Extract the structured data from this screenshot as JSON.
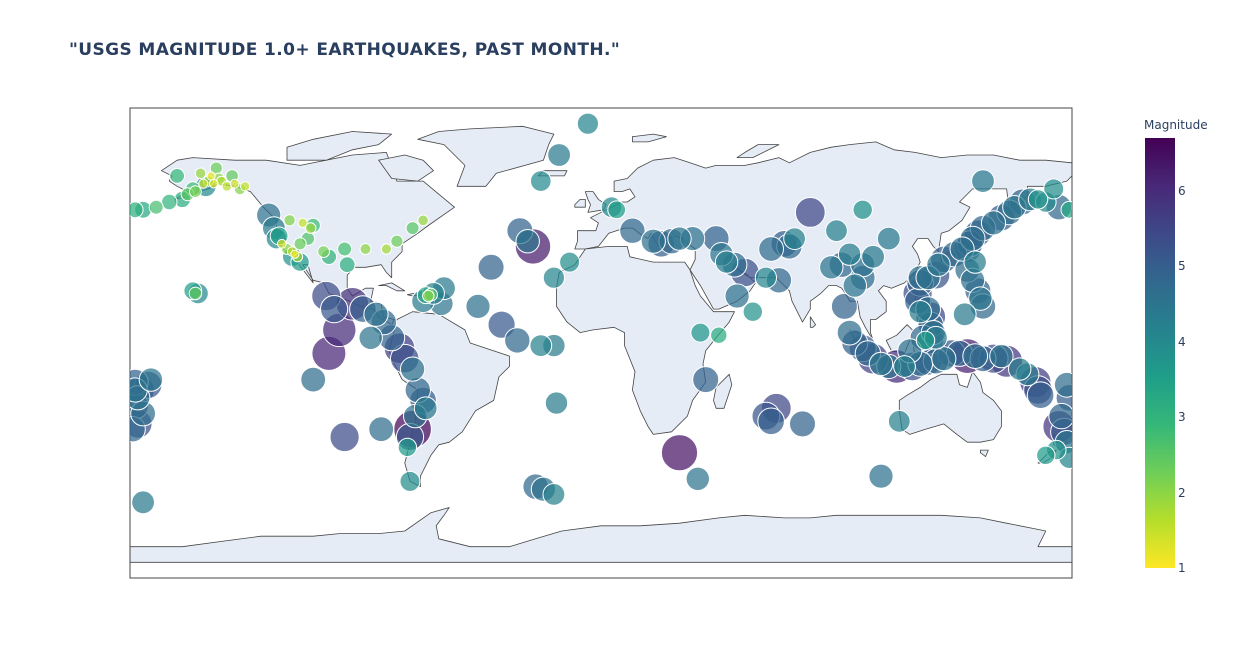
{
  "title": "\"USGS MAGNITUDE 1.0+ EARTHQUAKES, PAST MONTH.\"",
  "colorbar": {
    "title": "Magnitude",
    "ticks": [
      "1",
      "2",
      "3",
      "4",
      "5",
      "6"
    ],
    "colorscale": [
      "#fde725",
      "#b5de2b",
      "#6ece58",
      "#35b779",
      "#1f9e89",
      "#26828e",
      "#31688e",
      "#3e4989",
      "#482878",
      "#440154"
    ],
    "range": [
      1,
      6.7
    ]
  },
  "colors": {
    "land": "#e5ecf6",
    "coastline": "#444444",
    "ocean": "#ffffff",
    "frame": "#444444",
    "marker_outline": "#ffffff"
  },
  "chart_data": {
    "type": "scatter",
    "projection": "equirectangular",
    "lon_range": [
      -180,
      180
    ],
    "lat_range": [
      -90,
      90
    ],
    "size_by": "magnitude",
    "color_by": "magnitude",
    "points": [
      {
        "lon": -152,
        "lat": 61,
        "mag": 1.5
      },
      {
        "lon": -150,
        "lat": 62,
        "mag": 1.8
      },
      {
        "lon": -148,
        "lat": 61,
        "mag": 1.3
      },
      {
        "lon": -146,
        "lat": 63,
        "mag": 2.0
      },
      {
        "lon": -155,
        "lat": 58,
        "mag": 2.2
      },
      {
        "lon": -158,
        "lat": 57,
        "mag": 2.5
      },
      {
        "lon": -143,
        "lat": 60,
        "mag": 1.6
      },
      {
        "lon": -140,
        "lat": 61,
        "mag": 1.4
      },
      {
        "lon": -138,
        "lat": 59,
        "mag": 2.1
      },
      {
        "lon": -160,
        "lat": 55,
        "mag": 3.2
      },
      {
        "lon": -165,
        "lat": 54,
        "mag": 3.0
      },
      {
        "lon": -170,
        "lat": 52,
        "mag": 2.7
      },
      {
        "lon": -175,
        "lat": 51,
        "mag": 3.3
      },
      {
        "lon": -178,
        "lat": 51,
        "mag": 3.1
      },
      {
        "lon": -153,
        "lat": 65,
        "mag": 1.9
      },
      {
        "lon": -149,
        "lat": 64,
        "mag": 1.2
      },
      {
        "lon": -147,
        "lat": 67,
        "mag": 2.3
      },
      {
        "lon": -145,
        "lat": 62,
        "mag": 1.7
      },
      {
        "lon": -151,
        "lat": 60,
        "mag": 4.0
      },
      {
        "lon": -156,
        "lat": 59,
        "mag": 2.8
      },
      {
        "lon": -141,
        "lat": 64,
        "mag": 2.4
      },
      {
        "lon": -136,
        "lat": 60,
        "mag": 1.5
      },
      {
        "lon": -162,
        "lat": 64,
        "mag": 2.9
      },
      {
        "lon": -122,
        "lat": 38,
        "mag": 1.4
      },
      {
        "lon": -118,
        "lat": 35,
        "mag": 1.6
      },
      {
        "lon": -117,
        "lat": 34,
        "mag": 1.2
      },
      {
        "lon": -120,
        "lat": 36,
        "mag": 2.0
      },
      {
        "lon": -116,
        "lat": 33,
        "mag": 1.8
      },
      {
        "lon": -115,
        "lat": 38,
        "mag": 2.3
      },
      {
        "lon": -112,
        "lat": 40,
        "mag": 2.6
      },
      {
        "lon": -111,
        "lat": 44,
        "mag": 1.9
      },
      {
        "lon": -106,
        "lat": 35,
        "mag": 2.2
      },
      {
        "lon": -98,
        "lat": 36,
        "mag": 2.7
      },
      {
        "lon": -97,
        "lat": 30,
        "mag": 3.1
      },
      {
        "lon": -123,
        "lat": 41,
        "mag": 3.5
      },
      {
        "lon": -125,
        "lat": 44,
        "mag": 4.4
      },
      {
        "lon": -127,
        "lat": 49,
        "mag": 4.6
      },
      {
        "lon": -124,
        "lat": 40,
        "mag": 4.0
      },
      {
        "lon": -119,
        "lat": 47,
        "mag": 2.1
      },
      {
        "lon": -114,
        "lat": 46,
        "mag": 1.5
      },
      {
        "lon": -110,
        "lat": 45,
        "mag": 2.8
      },
      {
        "lon": -104,
        "lat": 33,
        "mag": 3.0
      },
      {
        "lon": -90,
        "lat": 36,
        "mag": 2.0
      },
      {
        "lon": -82,
        "lat": 36,
        "mag": 1.8
      },
      {
        "lon": -78,
        "lat": 39,
        "mag": 2.3
      },
      {
        "lon": -72,
        "lat": 44,
        "mag": 2.5
      },
      {
        "lon": -68,
        "lat": 47,
        "mag": 1.9
      },
      {
        "lon": -118,
        "lat": 33,
        "mag": 3.8
      },
      {
        "lon": -115,
        "lat": 31,
        "mag": 3.6
      },
      {
        "lon": -155,
        "lat": 19,
        "mag": 2.4
      },
      {
        "lon": -156,
        "lat": 20,
        "mag": 3.5
      },
      {
        "lon": -154,
        "lat": 19,
        "mag": 4.0
      },
      {
        "lon": -66,
        "lat": 18,
        "mag": 2.1
      },
      {
        "lon": -65,
        "lat": 18.5,
        "mag": 2.5
      },
      {
        "lon": -67,
        "lat": 18.3,
        "mag": 3.3
      },
      {
        "lon": -64,
        "lat": 19,
        "mag": 4.2
      },
      {
        "lon": -61,
        "lat": 15,
        "mag": 4.5
      },
      {
        "lon": -68,
        "lat": 16,
        "mag": 4.4
      },
      {
        "lon": -105,
        "lat": 18,
        "mag": 5.4
      },
      {
        "lon": -102,
        "lat": 13,
        "mag": 5.1
      },
      {
        "lon": -95,
        "lat": 15,
        "mag": 5.9
      },
      {
        "lon": -91,
        "lat": 13,
        "mag": 5.0
      },
      {
        "lon": -86,
        "lat": 11,
        "mag": 4.6
      },
      {
        "lon": -83,
        "lat": 8,
        "mag": 4.8
      },
      {
        "lon": -100,
        "lat": 5,
        "mag": 6.0
      },
      {
        "lon": -104,
        "lat": -4,
        "mag": 6.1
      },
      {
        "lon": -110,
        "lat": -14,
        "mag": 4.7
      },
      {
        "lon": -80,
        "lat": 2,
        "mag": 4.9
      },
      {
        "lon": -77,
        "lat": -2,
        "mag": 5.6
      },
      {
        "lon": -75,
        "lat": -6,
        "mag": 5.3
      },
      {
        "lon": -72,
        "lat": -10,
        "mag": 4.6
      },
      {
        "lon": -70,
        "lat": -18,
        "mag": 4.8
      },
      {
        "lon": -68,
        "lat": -22,
        "mag": 5.0
      },
      {
        "lon": -71,
        "lat": -28,
        "mag": 4.5
      },
      {
        "lon": -72,
        "lat": -33,
        "mag": 6.6
      },
      {
        "lon": -73,
        "lat": -36,
        "mag": 5.1
      },
      {
        "lon": -74,
        "lat": -40,
        "mag": 3.6
      },
      {
        "lon": -67,
        "lat": -25,
        "mag": 4.4
      },
      {
        "lon": -84,
        "lat": -33,
        "mag": 4.7
      },
      {
        "lon": -98,
        "lat": -36,
        "mag": 5.4
      },
      {
        "lon": -73,
        "lat": -53,
        "mag": 3.9
      },
      {
        "lon": -88,
        "lat": 2,
        "mag": 4.5
      },
      {
        "lon": -60,
        "lat": 21,
        "mag": 4.4
      },
      {
        "lon": -47,
        "lat": 14,
        "mag": 4.6
      },
      {
        "lon": -38,
        "lat": 7,
        "mag": 5.1
      },
      {
        "lon": -32,
        "lat": 1,
        "mag": 4.8
      },
      {
        "lon": -23,
        "lat": -1,
        "mag": 4.2
      },
      {
        "lon": -18,
        "lat": -1,
        "mag": 4.3
      },
      {
        "lon": -42,
        "lat": 29,
        "mag": 4.9
      },
      {
        "lon": -28,
        "lat": 39,
        "mag": 4.5
      },
      {
        "lon": -31,
        "lat": 43,
        "mag": 4.9
      },
      {
        "lon": -26,
        "lat": 37,
        "mag": 6.3
      },
      {
        "lon": -18,
        "lat": 25,
        "mag": 4.1
      },
      {
        "lon": -12,
        "lat": 31,
        "mag": 3.9
      },
      {
        "lon": -23,
        "lat": 62,
        "mag": 4.0
      },
      {
        "lon": -16,
        "lat": 72,
        "mag": 4.4
      },
      {
        "lon": -5,
        "lat": 84,
        "mag": 4.1
      },
      {
        "lon": -25,
        "lat": -55,
        "mag": 4.8
      },
      {
        "lon": -22,
        "lat": -56,
        "mag": 4.6
      },
      {
        "lon": -18,
        "lat": -58,
        "mag": 4.2
      },
      {
        "lon": -17,
        "lat": -23,
        "mag": 4.3
      },
      {
        "lon": 37,
        "lat": -52,
        "mag": 4.5
      },
      {
        "lon": -175,
        "lat": -61,
        "mag": 4.4
      },
      {
        "lon": 4,
        "lat": 52,
        "mag": 4.0
      },
      {
        "lon": 6,
        "lat": 51,
        "mag": 3.5
      },
      {
        "lon": 12,
        "lat": 43,
        "mag": 4.8
      },
      {
        "lon": 20,
        "lat": 39,
        "mag": 4.6
      },
      {
        "lon": 23,
        "lat": 38,
        "mag": 5.0
      },
      {
        "lon": 27,
        "lat": 39,
        "mag": 4.8
      },
      {
        "lon": 30,
        "lat": 40,
        "mag": 4.5
      },
      {
        "lon": 35,
        "lat": 40,
        "mag": 4.6
      },
      {
        "lon": 44,
        "lat": 40,
        "mag": 4.9
      },
      {
        "lon": 46,
        "lat": 34,
        "mag": 4.5
      },
      {
        "lon": 51,
        "lat": 30,
        "mag": 4.7
      },
      {
        "lon": 55,
        "lat": 27,
        "mag": 5.3
      },
      {
        "lon": 48,
        "lat": 31,
        "mag": 4.3
      },
      {
        "lon": 63,
        "lat": 25,
        "mag": 4.1
      },
      {
        "lon": 65,
        "lat": 36,
        "mag": 4.7
      },
      {
        "lon": 70,
        "lat": 38,
        "mag": 5.0
      },
      {
        "lon": 72,
        "lat": 37,
        "mag": 4.8
      },
      {
        "lon": 74,
        "lat": 40,
        "mag": 4.2
      },
      {
        "lon": 88,
        "lat": 29,
        "mag": 4.5
      },
      {
        "lon": 92,
        "lat": 30,
        "mag": 4.8
      },
      {
        "lon": 95,
        "lat": 34,
        "mag": 4.3
      },
      {
        "lon": 100,
        "lat": 30,
        "mag": 4.6
      },
      {
        "lon": 104,
        "lat": 33,
        "mag": 4.4
      },
      {
        "lon": 100,
        "lat": 25,
        "mag": 4.7
      },
      {
        "lon": 97,
        "lat": 22,
        "mag": 4.5
      },
      {
        "lon": 93,
        "lat": 14,
        "mag": 4.9
      },
      {
        "lon": 80,
        "lat": 50,
        "mag": 5.5
      },
      {
        "lon": 90,
        "lat": 43,
        "mag": 4.2
      },
      {
        "lon": 100,
        "lat": 51,
        "mag": 3.8
      },
      {
        "lon": 110,
        "lat": 40,
        "mag": 4.4
      },
      {
        "lon": 38,
        "lat": 4,
        "mag": 3.7
      },
      {
        "lon": 45,
        "lat": 3,
        "mag": 3.2
      },
      {
        "lon": 52,
        "lat": 18,
        "mag": 4.6
      },
      {
        "lon": 58,
        "lat": 12,
        "mag": 3.8
      },
      {
        "lon": 68,
        "lat": 24,
        "mag": 4.8
      },
      {
        "lon": 67,
        "lat": -25,
        "mag": 5.5
      },
      {
        "lon": 63,
        "lat": -28,
        "mag": 5.2
      },
      {
        "lon": 65,
        "lat": -30,
        "mag": 5.0
      },
      {
        "lon": 40,
        "lat": -14,
        "mag": 4.9
      },
      {
        "lon": 77,
        "lat": -31,
        "mag": 4.9
      },
      {
        "lon": 30,
        "lat": -42,
        "mag": 6.4
      },
      {
        "lon": 107,
        "lat": -51,
        "mag": 4.6
      },
      {
        "lon": 114,
        "lat": -30,
        "mag": 4.2
      },
      {
        "lon": 95,
        "lat": 4,
        "mag": 4.7
      },
      {
        "lon": 97,
        "lat": 0,
        "mag": 4.9
      },
      {
        "lon": 100,
        "lat": -2,
        "mag": 5.1
      },
      {
        "lon": 102,
        "lat": -4,
        "mag": 4.8
      },
      {
        "lon": 104,
        "lat": -6,
        "mag": 5.6
      },
      {
        "lon": 107,
        "lat": -8,
        "mag": 4.5
      },
      {
        "lon": 110,
        "lat": -9,
        "mag": 4.6
      },
      {
        "lon": 113,
        "lat": -9,
        "mag": 6.0
      },
      {
        "lon": 116,
        "lat": -9,
        "mag": 4.2
      },
      {
        "lon": 119,
        "lat": -9,
        "mag": 5.3
      },
      {
        "lon": 122,
        "lat": -8,
        "mag": 4.7
      },
      {
        "lon": 125,
        "lat": -7,
        "mag": 5.2
      },
      {
        "lon": 128,
        "lat": -7,
        "mag": 4.8
      },
      {
        "lon": 131,
        "lat": -6,
        "mag": 4.6
      },
      {
        "lon": 134,
        "lat": -4,
        "mag": 5.1
      },
      {
        "lon": 137,
        "lat": -4,
        "mag": 4.9
      },
      {
        "lon": 140,
        "lat": -5,
        "mag": 6.2
      },
      {
        "lon": 143,
        "lat": -5,
        "mag": 4.7
      },
      {
        "lon": 146,
        "lat": -6,
        "mag": 4.9
      },
      {
        "lon": 150,
        "lat": -6,
        "mag": 5.4
      },
      {
        "lon": 153,
        "lat": -5,
        "mag": 4.5
      },
      {
        "lon": 155,
        "lat": -7,
        "mag": 5.8
      },
      {
        "lon": 160,
        "lat": -10,
        "mag": 4.3
      },
      {
        "lon": 166,
        "lat": -15,
        "mag": 5.7
      },
      {
        "lon": 167,
        "lat": -18,
        "mag": 5.3
      },
      {
        "lon": 168,
        "lat": -20,
        "mag": 5.0
      },
      {
        "lon": 163,
        "lat": -12,
        "mag": 4.4
      },
      {
        "lon": 126,
        "lat": 1,
        "mag": 5.0
      },
      {
        "lon": 127,
        "lat": 4,
        "mag": 4.6
      },
      {
        "lon": 126,
        "lat": 7,
        "mag": 4.8
      },
      {
        "lon": 126,
        "lat": 10,
        "mag": 5.5
      },
      {
        "lon": 125,
        "lat": 13,
        "mag": 4.7
      },
      {
        "lon": 121,
        "lat": 16,
        "mag": 4.9
      },
      {
        "lon": 121,
        "lat": 19,
        "mag": 5.4
      },
      {
        "lon": 122,
        "lat": 23,
        "mag": 5.0
      },
      {
        "lon": 122,
        "lat": 25,
        "mag": 4.6
      },
      {
        "lon": 122,
        "lat": 12,
        "mag": 4.3
      },
      {
        "lon": 124,
        "lat": 1,
        "mag": 3.6
      },
      {
        "lon": 118,
        "lat": -3,
        "mag": 4.6
      },
      {
        "lon": 123,
        "lat": 2,
        "mag": 4.8
      },
      {
        "lon": 128,
        "lat": 2,
        "mag": 4.4
      },
      {
        "lon": 129,
        "lat": 30,
        "mag": 4.5
      },
      {
        "lon": 131,
        "lat": 32,
        "mag": 5.0
      },
      {
        "lon": 135,
        "lat": 34,
        "mag": 4.8
      },
      {
        "lon": 138,
        "lat": 36,
        "mag": 4.6
      },
      {
        "lon": 140,
        "lat": 36,
        "mag": 5.1
      },
      {
        "lon": 141,
        "lat": 38,
        "mag": 4.9
      },
      {
        "lon": 142,
        "lat": 40,
        "mag": 4.7
      },
      {
        "lon": 144,
        "lat": 42,
        "mag": 5.0
      },
      {
        "lon": 146,
        "lat": 44,
        "mag": 4.8
      },
      {
        "lon": 150,
        "lat": 46,
        "mag": 4.6
      },
      {
        "lon": 153,
        "lat": 48,
        "mag": 5.0
      },
      {
        "lon": 156,
        "lat": 50,
        "mag": 4.7
      },
      {
        "lon": 158,
        "lat": 52,
        "mag": 4.5
      },
      {
        "lon": 161,
        "lat": 54,
        "mag": 4.9
      },
      {
        "lon": 164,
        "lat": 55,
        "mag": 4.4
      },
      {
        "lon": 167,
        "lat": 55,
        "mag": 3.8
      },
      {
        "lon": 170,
        "lat": 54,
        "mag": 4.0
      },
      {
        "lon": 175,
        "lat": 52,
        "mag": 4.8
      },
      {
        "lon": 179,
        "lat": 51,
        "mag": 3.3
      },
      {
        "lon": 140,
        "lat": 28,
        "mag": 4.7
      },
      {
        "lon": 142,
        "lat": 24,
        "mag": 4.6
      },
      {
        "lon": 144,
        "lat": 20,
        "mag": 4.9
      },
      {
        "lon": 145,
        "lat": 17,
        "mag": 4.5
      },
      {
        "lon": 146,
        "lat": 14,
        "mag": 4.8
      },
      {
        "lon": 139,
        "lat": 11,
        "mag": 4.4
      },
      {
        "lon": 128,
        "lat": 26,
        "mag": 5.2
      },
      {
        "lon": 125,
        "lat": 25,
        "mag": 4.6
      },
      {
        "lon": 143,
        "lat": 31,
        "mag": 4.3
      },
      {
        "lon": 146,
        "lat": 62,
        "mag": 4.4
      },
      {
        "lon": 173,
        "lat": 59,
        "mag": 3.9
      },
      {
        "lon": 176,
        "lat": -28,
        "mag": 4.8
      },
      {
        "lon": 175,
        "lat": -32,
        "mag": 5.8
      },
      {
        "lon": 177,
        "lat": -34,
        "mag": 5.1
      },
      {
        "lon": 178,
        "lat": -38,
        "mag": 4.5
      },
      {
        "lon": 174,
        "lat": -41,
        "mag": 3.8
      },
      {
        "lon": 170,
        "lat": -43,
        "mag": 3.6
      },
      {
        "lon": 179,
        "lat": -21,
        "mag": 5.0
      },
      {
        "lon": 178,
        "lat": -16,
        "mag": 4.7
      },
      {
        "lon": 179,
        "lat": -44,
        "mag": 4.1
      },
      {
        "lon": -178,
        "lat": -15,
        "mag": 4.9
      },
      {
        "lon": -176,
        "lat": -18,
        "mag": 5.2
      },
      {
        "lon": -177,
        "lat": -21,
        "mag": 4.6
      },
      {
        "lon": -178,
        "lat": -24,
        "mag": 5.0
      },
      {
        "lon": -175,
        "lat": -27,
        "mag": 4.7
      },
      {
        "lon": -177,
        "lat": -31,
        "mag": 5.3
      },
      {
        "lon": -179,
        "lat": -33,
        "mag": 4.8
      },
      {
        "lon": -173,
        "lat": -16,
        "mag": 5.1
      },
      {
        "lon": -172,
        "lat": -14,
        "mag": 4.5
      },
      {
        "lon": -178,
        "lat": -18,
        "mag": 4.6
      }
    ]
  }
}
